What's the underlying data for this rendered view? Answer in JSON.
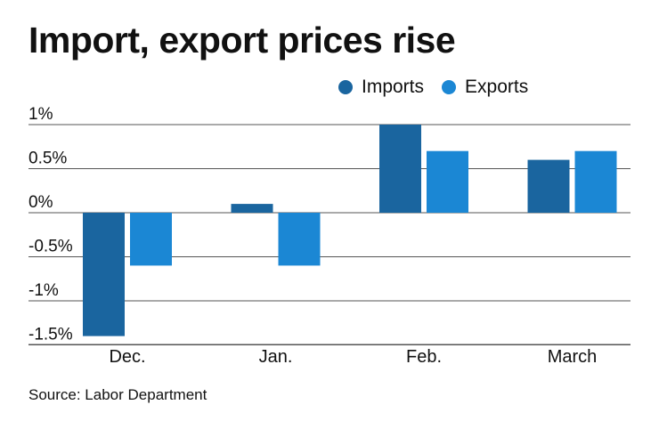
{
  "chart_data": {
    "type": "bar",
    "title": "Import, export prices rise",
    "categories": [
      "Dec.",
      "Jan.",
      "Feb.",
      "March"
    ],
    "series": [
      {
        "name": "Imports",
        "color": "#1a659f",
        "values": [
          -1.4,
          0.1,
          1.0,
          0.6
        ]
      },
      {
        "name": "Exports",
        "color": "#1b87d4",
        "values": [
          -0.6,
          -0.6,
          0.7,
          0.7
        ]
      }
    ],
    "yticks": [
      1,
      0.5,
      0,
      -0.5,
      -1,
      -1.5
    ],
    "ytick_labels": [
      "1%",
      "0.5%",
      "0%",
      "-0.5%",
      "-1%",
      "-1.5%"
    ],
    "ylim": [
      -1.5,
      1
    ],
    "xlabel": "",
    "ylabel": "",
    "grid": true,
    "legend_position": "top-right"
  },
  "source": "Source: Labor Department",
  "colors": {
    "gridline": "#555555",
    "text": "#111111"
  }
}
